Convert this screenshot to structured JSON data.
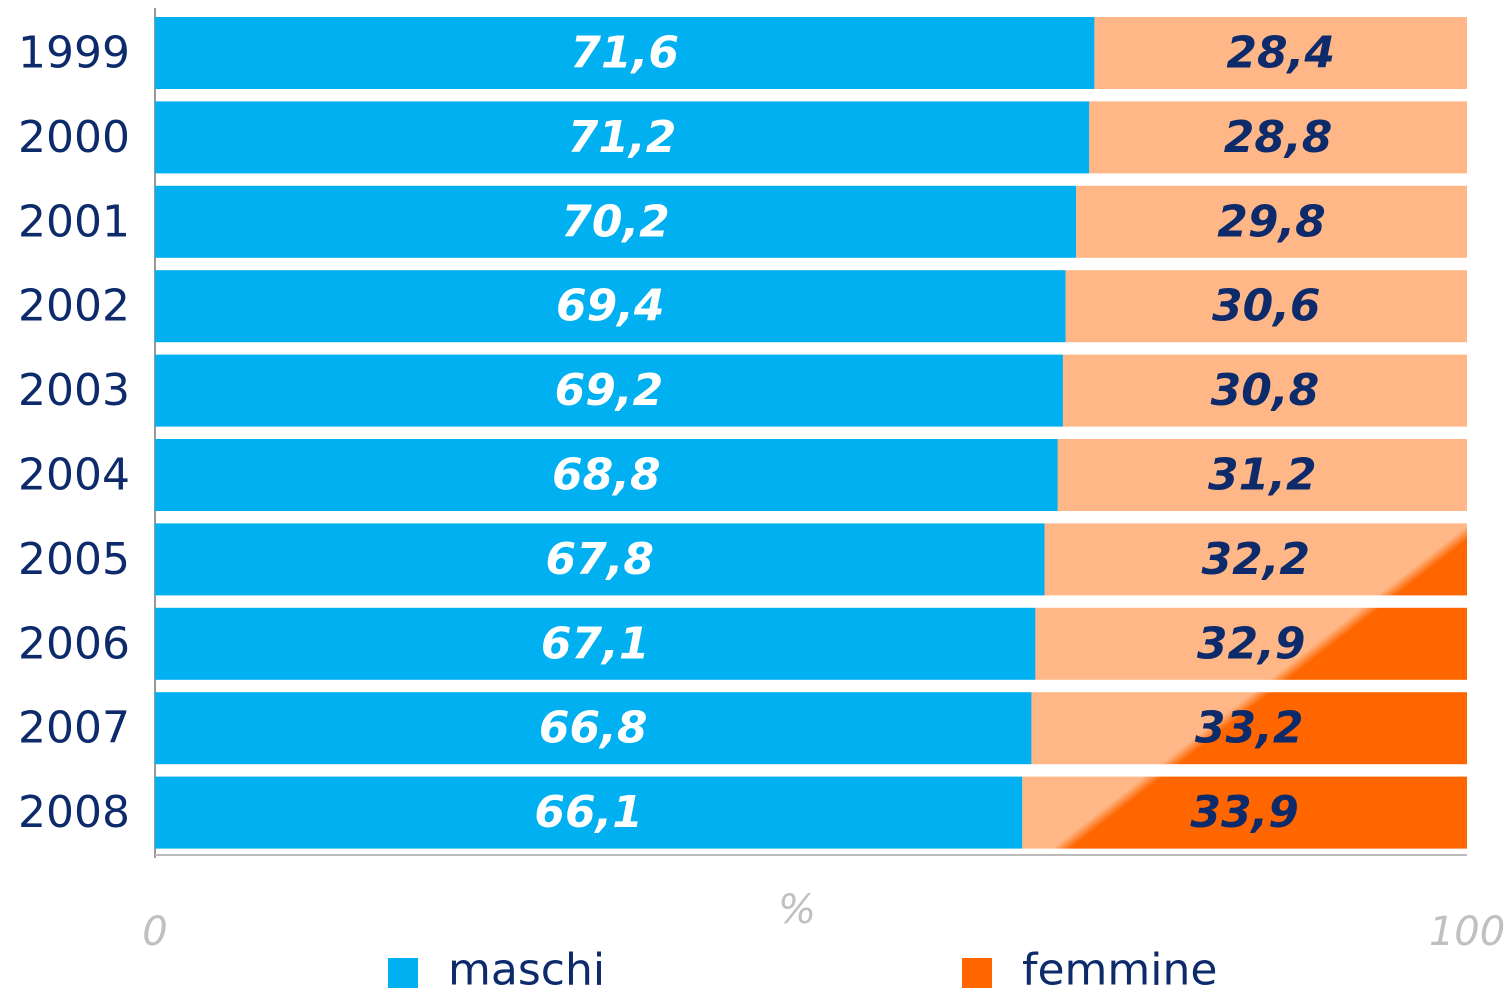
{
  "chart_data": {
    "type": "stacked_bar_horizontal",
    "categories": [
      "1999",
      "2000",
      "2001",
      "2002",
      "2003",
      "2004",
      "2005",
      "2006",
      "2007",
      "2008"
    ],
    "series": [
      {
        "name": "maschi",
        "color": "#00b0f0",
        "label_color": "#ffffff",
        "values": [
          71.6,
          71.2,
          70.2,
          69.4,
          69.2,
          68.8,
          67.8,
          67.1,
          66.8,
          66.1
        ],
        "value_labels": [
          "71,6",
          "71,2",
          "70,2",
          "69,4",
          "69,2",
          "68,8",
          "67,8",
          "67,1",
          "66,8",
          "66,1"
        ]
      },
      {
        "name": "femmine",
        "color": "#ff6600",
        "label_color": "#0d2a6b",
        "values": [
          28.4,
          28.8,
          29.8,
          30.6,
          30.8,
          31.2,
          32.2,
          32.9,
          33.2,
          33.9
        ],
        "value_labels": [
          "28,4",
          "28,8",
          "29,8",
          "30,6",
          "30,8",
          "31,2",
          "32,2",
          "32,9",
          "33,2",
          "33,9"
        ]
      }
    ],
    "x_label": "%",
    "xlim": [
      0,
      100
    ],
    "xticks": [
      0,
      100
    ],
    "legend": "bottom"
  }
}
